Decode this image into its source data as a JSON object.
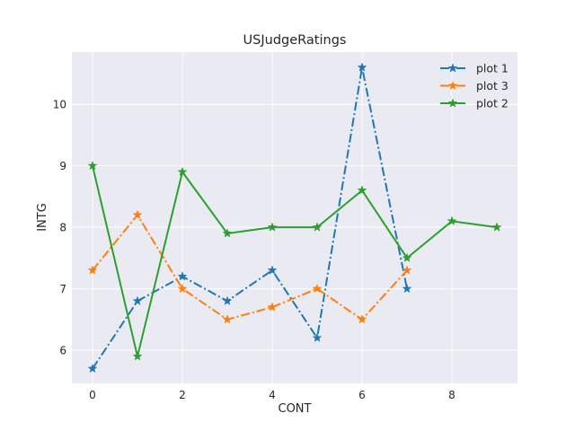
{
  "chart_data": {
    "type": "line",
    "title": "USJudgeRatings",
    "xlabel": "CONT",
    "ylabel": "INTG",
    "xlim": [
      -0.46,
      9.46
    ],
    "ylim": [
      5.46,
      10.85
    ],
    "xticks": [
      0,
      2,
      4,
      6,
      8
    ],
    "yticks": [
      6,
      7,
      8,
      9,
      10
    ],
    "grid": true,
    "legend_position": "top-right",
    "series": [
      {
        "name": "plot 1",
        "color": "#1f77b4",
        "linestyle": "dashdot",
        "marker": "star",
        "x": [
          0,
          1,
          2,
          3,
          4,
          5,
          6,
          7
        ],
        "y": [
          5.7,
          6.8,
          7.2,
          6.8,
          7.3,
          6.2,
          10.6,
          7.0
        ]
      },
      {
        "name": "plot 3",
        "color": "#ff7f0e",
        "linestyle": "dashdot",
        "marker": "star",
        "x": [
          0,
          1,
          2,
          3,
          4,
          5,
          6,
          7
        ],
        "y": [
          7.3,
          8.2,
          7.0,
          6.5,
          6.7,
          7.0,
          6.5,
          7.3
        ]
      },
      {
        "name": "plot 2",
        "color": "#2ca02c",
        "linestyle": "solid",
        "marker": "star",
        "x": [
          0,
          1,
          2,
          3,
          4,
          5,
          6,
          7,
          8,
          9
        ],
        "y": [
          9.0,
          5.9,
          8.9,
          7.9,
          8.0,
          8.0,
          8.6,
          7.5,
          8.1,
          8.0
        ]
      }
    ]
  }
}
